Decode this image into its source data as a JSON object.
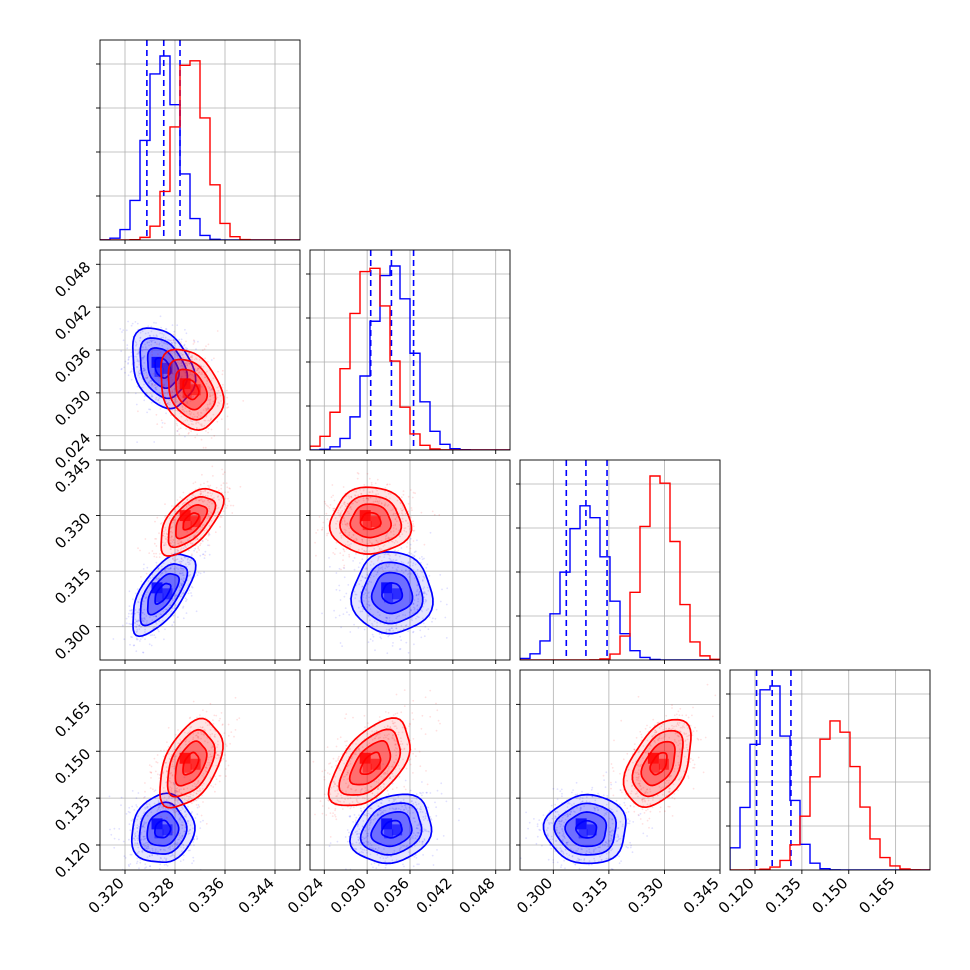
{
  "chart_data": {
    "type": "corner",
    "title": "",
    "grid": true,
    "colors": {
      "blue": "#0000ff",
      "red": "#ff0000",
      "axis": "#000000",
      "grid": "#b0b0b0"
    },
    "parameters": [
      {
        "range": [
          0.316,
          0.348
        ],
        "ticks": [
          0.32,
          0.328,
          0.336,
          0.344
        ],
        "tick_labels": [
          "0.320",
          "0.328",
          "0.336",
          "0.344"
        ]
      },
      {
        "range": [
          0.022,
          0.05
        ],
        "ticks": [
          0.024,
          0.03,
          0.036,
          0.042,
          0.048
        ],
        "tick_labels": [
          "0.024",
          "0.030",
          "0.036",
          "0.042",
          "0.048"
        ]
      },
      {
        "range": [
          0.291,
          0.345
        ],
        "ticks": [
          0.3,
          0.315,
          0.33,
          0.345
        ],
        "tick_labels": [
          "0.300",
          "0.315",
          "0.330",
          "0.345"
        ]
      },
      {
        "range": [
          0.112,
          0.176
        ],
        "ticks": [
          0.12,
          0.135,
          0.15,
          0.165
        ],
        "tick_labels": [
          "0.120",
          "0.135",
          "0.150",
          "0.165"
        ]
      }
    ],
    "series": [
      {
        "color": "blue",
        "mean": [
          0.326,
          0.0335,
          0.309,
          0.125
        ],
        "std": [
          0.0025,
          0.0028,
          0.0055,
          0.0055
        ],
        "quantile_lines": [
          [
            0.3235,
            0.3262,
            0.3288
          ],
          [
            0.0305,
            0.0334,
            0.0365
          ],
          [
            0.3035,
            0.3088,
            0.3145
          ],
          [
            0.1205,
            0.1255,
            0.1315
          ]
        ],
        "corr": {
          "0-1": -0.3,
          "0-2": 0.65,
          "0-3": 0.1,
          "1-2": 0.0,
          "1-3": 0.2,
          "2-3": 0.0
        }
      },
      {
        "color": "red",
        "mean": [
          0.3305,
          0.0305,
          0.3285,
          0.146
        ],
        "std": [
          0.0025,
          0.0028,
          0.0045,
          0.007
        ],
        "corr": {
          "0-1": -0.3,
          "0-2": 0.6,
          "0-3": 0.45,
          "1-2": 0.0,
          "1-3": 0.55,
          "2-3": 0.45
        }
      }
    ]
  }
}
